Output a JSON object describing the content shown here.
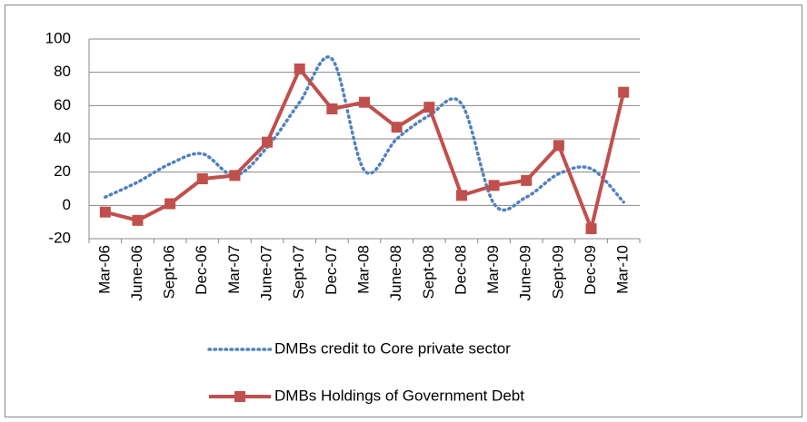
{
  "chart_data": {
    "type": "line",
    "categories": [
      "Mar-06",
      "June-06",
      "Sept-06",
      "Dec-06",
      "Mar-07",
      "June-07",
      "Sept-07",
      "Dec-07",
      "Mar-08",
      "June-08",
      "Sept-08",
      "Dec-08",
      "Mar-09",
      "June-09",
      "Sept-09",
      "Dec-09",
      "Mar-10"
    ],
    "series": [
      {
        "name": "DMBs credit to Core private sector",
        "color": "#4f81bd",
        "style": "dotted",
        "smooth": true,
        "values": [
          5,
          14,
          25,
          31,
          18,
          35,
          62,
          88,
          21,
          40,
          54,
          61,
          1,
          5,
          19,
          22,
          2
        ]
      },
      {
        "name": "DMBs Holdings of Government Debt",
        "color": "#c0504d",
        "style": "solid",
        "marker": "square",
        "values": [
          -4,
          -9,
          1,
          16,
          18,
          38,
          82,
          58,
          62,
          47,
          59,
          6,
          12,
          15,
          36,
          -14,
          68
        ]
      }
    ],
    "ylim": [
      -20,
      100
    ],
    "yticks": [
      -20,
      0,
      20,
      40,
      60,
      80,
      100
    ],
    "grid": true,
    "legend": "bottom"
  }
}
